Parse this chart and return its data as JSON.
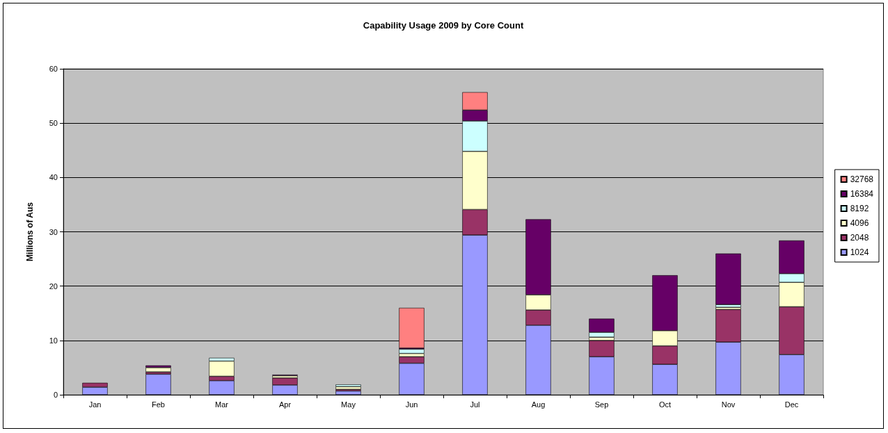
{
  "chart_data": {
    "type": "bar",
    "title": "Capability Usage 2009 by Core Count",
    "ylabel": "Millions of Aus",
    "stacked": true,
    "categories": [
      "Jan",
      "Feb",
      "Mar",
      "Apr",
      "May",
      "Jun",
      "Jul",
      "Aug",
      "Sep",
      "Oct",
      "Nov",
      "Dec"
    ],
    "series": [
      {
        "name": "1024",
        "color": "#9999ff",
        "values": [
          1.4,
          3.8,
          2.6,
          1.8,
          0.7,
          5.8,
          29.4,
          12.8,
          7.0,
          5.6,
          9.7,
          7.4
        ]
      },
      {
        "name": "2048",
        "color": "#993366",
        "values": [
          0.8,
          0.4,
          0.8,
          1.3,
          0.3,
          1.2,
          4.7,
          2.8,
          3.0,
          3.4,
          6.0,
          8.8
        ]
      },
      {
        "name": "4096",
        "color": "#ffffcc",
        "values": [
          null,
          0.8,
          2.8,
          0.4,
          0.5,
          0.6,
          10.7,
          2.8,
          0.6,
          2.8,
          0.4,
          4.5
        ]
      },
      {
        "name": "8192",
        "color": "#ccffff",
        "values": [
          null,
          null,
          0.6,
          null,
          0.4,
          0.8,
          5.6,
          null,
          0.9,
          null,
          0.5,
          1.6
        ]
      },
      {
        "name": "16384",
        "color": "#660066",
        "values": [
          null,
          0.4,
          null,
          0.2,
          null,
          0.2,
          2.0,
          13.9,
          2.5,
          10.2,
          9.4,
          6.1
        ]
      },
      {
        "name": "32768",
        "color": "#ff8080",
        "values": [
          null,
          null,
          null,
          null,
          null,
          7.4,
          3.3,
          null,
          null,
          null,
          null,
          null
        ]
      }
    ],
    "ylim": [
      0,
      60
    ],
    "yticks": [
      0,
      10,
      20,
      30,
      40,
      50,
      60
    ],
    "grid": "y",
    "legend": "right"
  }
}
